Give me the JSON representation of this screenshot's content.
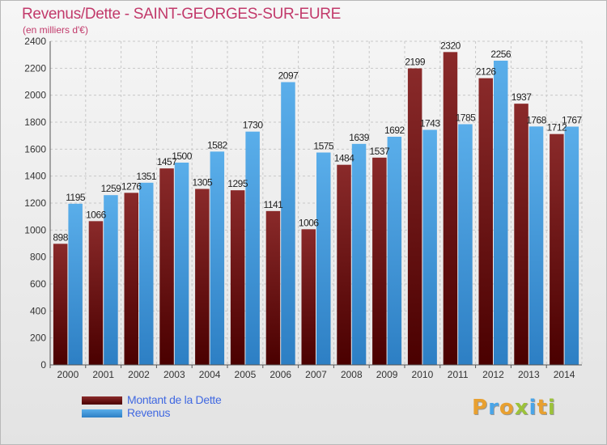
{
  "header": {
    "title": "Revenus/Dette - SAINT-GEORGES-SUR-EURE",
    "subtitle": "(en milliers d'€)"
  },
  "logo": {
    "text": "Proxiti"
  },
  "colors": {
    "debt": "#7a1c1c",
    "revenue": "#4aa5e8",
    "title": "#c23a6b",
    "legend_text": "#4169e1"
  },
  "chart_data": {
    "type": "bar",
    "title": "Revenus/Dette - SAINT-GEORGES-SUR-EURE",
    "subtitle": "(en milliers d'€)",
    "categories": [
      "2000",
      "2001",
      "2002",
      "2003",
      "2004",
      "2005",
      "2006",
      "2007",
      "2008",
      "2009",
      "2010",
      "2011",
      "2012",
      "2013",
      "2014"
    ],
    "series": [
      {
        "name": "Montant de la Dette",
        "values": [
          898,
          1066,
          1276,
          1457,
          1305,
          1295,
          1141,
          1006,
          1484,
          1537,
          2199,
          2320,
          2126,
          1937,
          1712
        ],
        "labels": [
          "898",
          "1066",
          "1276",
          "1457",
          "1305",
          "1295",
          "1141",
          "1006",
          "1484",
          "1537",
          "2199",
          "2320",
          "2126",
          "1937",
          "1712"
        ]
      },
      {
        "name": "Revenus",
        "values": [
          1195,
          1259,
          1351,
          1500,
          1582,
          1730,
          2097,
          1575,
          1639,
          1692,
          1743,
          1785,
          2256,
          1768,
          1767
        ],
        "labels": [
          "1195",
          "1259",
          "1351",
          "1500",
          "1582",
          "1730",
          "2097",
          "1575",
          "1639",
          "1692",
          "1743",
          "1785",
          "2256",
          "1768",
          "1767"
        ]
      }
    ],
    "ylim": [
      0,
      2400
    ],
    "yticks": [
      0,
      200,
      400,
      600,
      800,
      1000,
      1200,
      1400,
      1600,
      1800,
      2000,
      2200,
      2400
    ],
    "grid": true,
    "legend_position": "bottom-left"
  }
}
